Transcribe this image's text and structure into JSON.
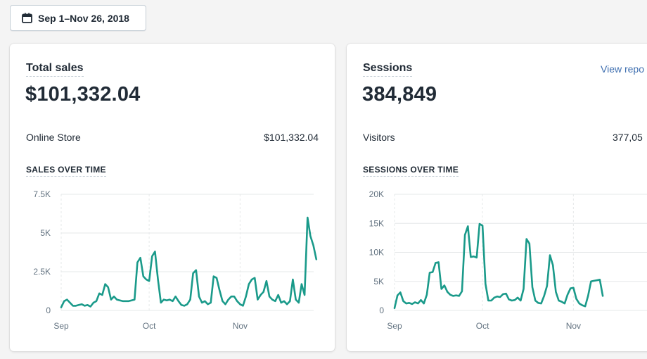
{
  "date_range": {
    "label": "Sep 1–Nov 26, 2018",
    "icon": "calendar-icon"
  },
  "sales": {
    "title": "Total sales",
    "total": "$101,332.04",
    "breakdown": {
      "label": "Online Store",
      "value": "$101,332.04"
    },
    "chart_title": "SALES OVER TIME"
  },
  "sessions": {
    "title": "Sessions",
    "link": "View repo",
    "total": "384,849",
    "breakdown": {
      "label": "Visitors",
      "value": "377,05"
    },
    "chart_title": "SESSIONS OVER TIME"
  },
  "colors": {
    "line": "#1a9a8a",
    "grid": "#e6e8ea",
    "link": "#3f6fb0"
  },
  "chart_data": [
    {
      "type": "line",
      "title": "SALES OVER TIME",
      "y_ticks": [
        "0",
        "2.5K",
        "5K",
        "7.5K"
      ],
      "y_tick_values": [
        0,
        2500,
        5000,
        7500
      ],
      "x_ticks": [
        "Sep",
        "Oct",
        "Nov"
      ],
      "x_tick_days": [
        0,
        30,
        61
      ],
      "ylim": [
        0,
        7500
      ],
      "xlim_days": [
        0,
        86
      ],
      "series": [
        {
          "values": [
            200,
            600,
            700,
            500,
            300,
            300,
            350,
            400,
            300,
            350,
            250,
            500,
            600,
            1100,
            1000,
            1700,
            1500,
            700,
            900,
            700,
            650,
            600,
            600,
            600,
            650,
            700,
            3100,
            3400,
            2200,
            2000,
            1900,
            3500,
            3800,
            2000,
            500,
            700,
            650,
            700,
            600,
            900,
            600,
            350,
            300,
            400,
            700,
            2400,
            2600,
            900,
            500,
            600,
            400,
            500,
            2200,
            2100,
            1300,
            600,
            400,
            700,
            900,
            900,
            600,
            400,
            300,
            900,
            1700,
            2000,
            2100,
            700,
            1000,
            1200,
            1900,
            900,
            700,
            600,
            1000,
            500,
            600,
            400,
            600,
            2000,
            700,
            500,
            1700,
            1000,
            6000,
            4800,
            4200,
            3300
          ],
          "color": "#1a9a8a"
        }
      ]
    },
    {
      "type": "line",
      "title": "SESSIONS OVER TIME",
      "y_ticks": [
        "0",
        "5K",
        "10K",
        "15K",
        "20K"
      ],
      "y_tick_values": [
        0,
        5000,
        10000,
        15000,
        20000
      ],
      "x_ticks": [
        "Sep",
        "Oct",
        "Nov"
      ],
      "x_tick_days": [
        0,
        30,
        61
      ],
      "ylim": [
        0,
        20000
      ],
      "xlim_days": [
        0,
        86
      ],
      "series": [
        {
          "values": [
            400,
            2600,
            3100,
            1600,
            1200,
            1300,
            1100,
            1400,
            1200,
            1800,
            1200,
            2700,
            6500,
            6600,
            8200,
            8300,
            3700,
            4300,
            3200,
            2700,
            2500,
            2600,
            2500,
            3300,
            13000,
            14500,
            9200,
            9300,
            9100,
            14900,
            14600,
            4600,
            1700,
            1700,
            2200,
            2400,
            2300,
            2800,
            2900,
            1900,
            1700,
            1800,
            2200,
            1700,
            3700,
            12300,
            11500,
            4000,
            1700,
            1300,
            1200,
            2500,
            4200,
            9500,
            7800,
            3200,
            1700,
            1500,
            1200,
            2700,
            3800,
            3900,
            2000,
            1200,
            900,
            700,
            2500,
            5000,
            5100,
            5200,
            5300,
            2500
          ],
          "color": "#1a9a8a"
        }
      ]
    }
  ]
}
